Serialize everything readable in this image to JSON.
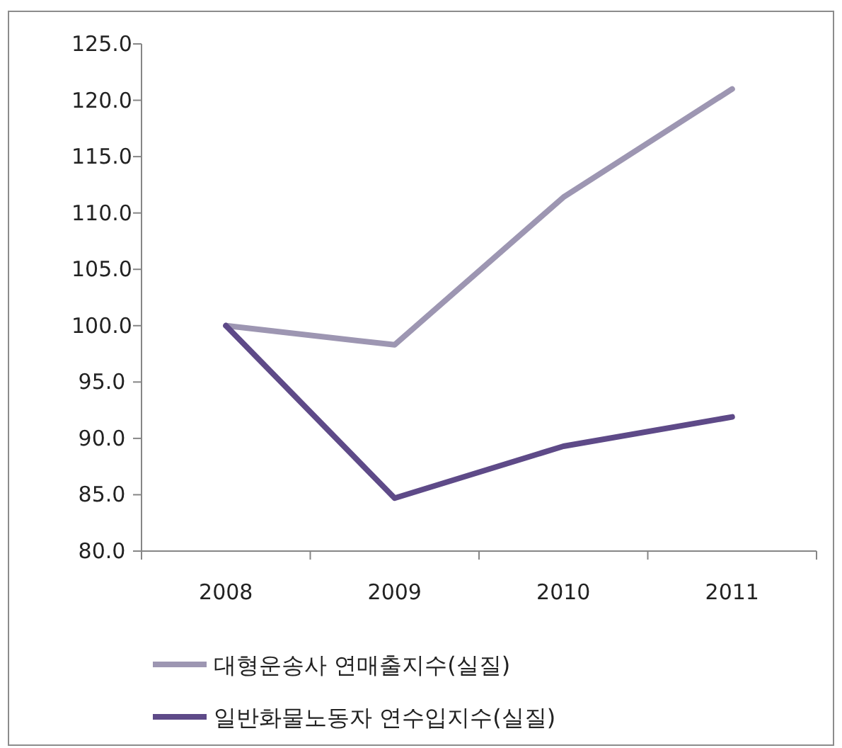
{
  "chart_data": {
    "type": "line",
    "categories": [
      "2008",
      "2009",
      "2010",
      "2011"
    ],
    "ylim": [
      80,
      125
    ],
    "yticks": [
      {
        "value": 80,
        "label": "80.0"
      },
      {
        "value": 85,
        "label": "85.0"
      },
      {
        "value": 90,
        "label": "90.0"
      },
      {
        "value": 95,
        "label": "95.0"
      },
      {
        "value": 100,
        "label": "100.0"
      },
      {
        "value": 105,
        "label": "105.0"
      },
      {
        "value": 110,
        "label": "110.0"
      },
      {
        "value": 115,
        "label": "115.0"
      },
      {
        "value": 120,
        "label": "120.0"
      },
      {
        "value": 125,
        "label": "125.0"
      }
    ],
    "series": [
      {
        "name": "대형운송사 연매출지수(실질)",
        "color": "#9d96b2",
        "values": [
          100,
          98.3,
          111.4,
          121.0
        ]
      },
      {
        "name": "일반화물노동자 연수입지수(실질)",
        "color": "#5e4a88",
        "values": [
          100,
          84.7,
          89.3,
          91.9
        ]
      }
    ],
    "grid": false,
    "legend": "bottom",
    "marker": "none",
    "line_style": "solid"
  }
}
